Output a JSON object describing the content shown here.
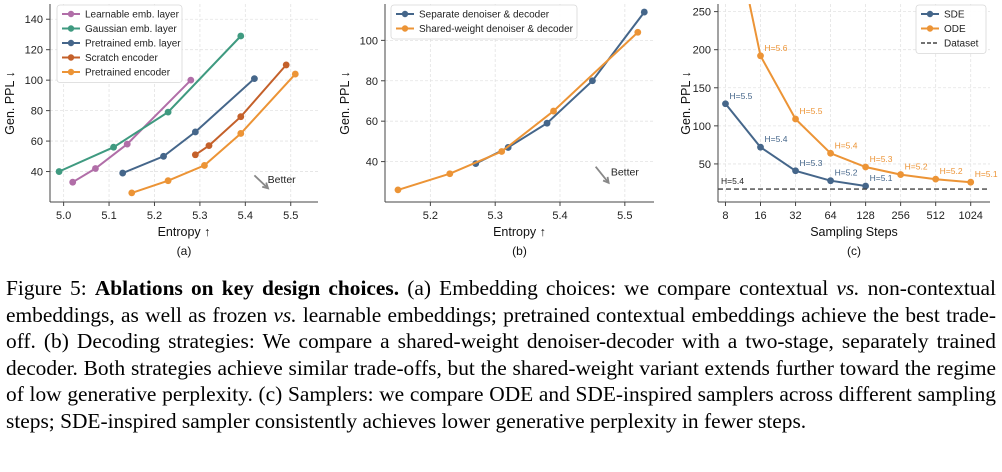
{
  "colors": {
    "grid": "#e3e3e3",
    "axis": "#444444",
    "better_arrow": "#888888"
  },
  "better_label": "Better",
  "chart_data": [
    {
      "type": "line",
      "sublabel": "(a)",
      "xlabel": "Entropy  ↑",
      "ylabel": "Gen. PPL  ↓",
      "xlim": [
        4.97,
        5.56
      ],
      "ylim": [
        20,
        150
      ],
      "xticks": [
        5.0,
        5.1,
        5.2,
        5.3,
        5.4,
        5.5
      ],
      "xtick_labels": [
        "5.0",
        "5.1",
        "5.2",
        "5.3",
        "5.4",
        "5.5"
      ],
      "yticks": [
        40,
        60,
        80,
        100,
        120,
        140
      ],
      "ytick_labels": [
        "40",
        "60",
        "80",
        "100",
        "120",
        "140"
      ],
      "grid": true,
      "legend_position": "top-left",
      "better_arrow": {
        "from": [
          5.42,
          37.5
        ],
        "to": [
          5.45,
          29
        ]
      },
      "better_text_at": [
        5.48,
        35
      ],
      "series": [
        {
          "name": "Learnable emb. layer",
          "color": "#b16ea8",
          "x": [
            5.02,
            5.07,
            5.14,
            5.28
          ],
          "y": [
            33,
            42,
            58,
            100
          ]
        },
        {
          "name": "Gaussian emb. layer",
          "color": "#3f9a80",
          "x": [
            4.99,
            5.11,
            5.23,
            5.39
          ],
          "y": [
            40,
            56,
            79,
            129
          ]
        },
        {
          "name": "Pretrained emb. layer",
          "color": "#45668a",
          "x": [
            5.13,
            5.22,
            5.29,
            5.42
          ],
          "y": [
            39,
            50,
            66,
            101
          ]
        },
        {
          "name": "Scratch encoder",
          "color": "#c4602a",
          "x": [
            5.29,
            5.32,
            5.39,
            5.49
          ],
          "y": [
            51,
            57,
            76,
            110
          ]
        },
        {
          "name": "Pretrained encoder",
          "color": "#ec9436",
          "x": [
            5.15,
            5.23,
            5.31,
            5.39,
            5.51
          ],
          "y": [
            26,
            34,
            44,
            65,
            104
          ]
        }
      ]
    },
    {
      "type": "line",
      "sublabel": "(b)",
      "xlabel": "Entropy  ↑",
      "ylabel": "Gen. PPL  ↓",
      "xlim": [
        5.13,
        5.545
      ],
      "ylim": [
        20,
        118
      ],
      "xticks": [
        5.2,
        5.3,
        5.4,
        5.5
      ],
      "xtick_labels": [
        "5.2",
        "5.3",
        "5.4",
        "5.5"
      ],
      "yticks": [
        40,
        60,
        80,
        100
      ],
      "ytick_labels": [
        "40",
        "60",
        "80",
        "100"
      ],
      "grid": true,
      "legend_position": "top-left",
      "better_arrow": {
        "from": [
          5.455,
          37.5
        ],
        "to": [
          5.475,
          29.5
        ]
      },
      "better_text_at": [
        5.5,
        35
      ],
      "series": [
        {
          "name": "Separate denoiser & decoder",
          "color": "#45668a",
          "x": [
            5.27,
            5.32,
            5.38,
            5.45,
            5.53
          ],
          "y": [
            39,
            47,
            59,
            80,
            114
          ]
        },
        {
          "name": "Shared-weight denoiser & decoder",
          "color": "#ec9436",
          "x": [
            5.15,
            5.23,
            5.31,
            5.39,
            5.52
          ],
          "y": [
            26,
            34,
            45,
            65,
            104
          ]
        }
      ]
    },
    {
      "type": "line",
      "sublabel": "(c)",
      "xlabel": "Sampling Steps",
      "ylabel": "Gen. PPL  ↓",
      "x_scale": "log2",
      "xlim": [
        6.9,
        1500
      ],
      "ylim": [
        0,
        260
      ],
      "xticks": [
        8,
        16,
        32,
        64,
        128,
        256,
        512,
        1024
      ],
      "xtick_labels": [
        "8",
        "16",
        "32",
        "64",
        "128",
        "256",
        "512",
        "1024"
      ],
      "yticks": [
        50,
        100,
        150,
        200,
        250
      ],
      "ytick_labels": [
        "50",
        "100",
        "150",
        "200",
        "250"
      ],
      "grid": true,
      "legend_position": "top-right",
      "series": [
        {
          "name": "SDE",
          "color": "#45668a",
          "x": [
            8,
            16,
            32,
            64,
            128
          ],
          "y": [
            129,
            72,
            41,
            28,
            21
          ],
          "labels": [
            "H=5.5",
            "H=5.4",
            "H=5.3",
            "H=5.2",
            "H=5.1"
          ]
        },
        {
          "name": "ODE",
          "color": "#ec9436",
          "x": [
            16,
            32,
            64,
            128,
            256,
            512,
            1024
          ],
          "y": [
            192,
            109,
            64,
            46,
            36,
            30,
            26
          ],
          "labels": [
            "H=5.6",
            "H=5.5",
            "H=5.4",
            "H=5.3",
            "H=5.2",
            "H=5.2",
            "H=5.1"
          ],
          "off_top": {
            "x_at_top": 12.9
          }
        },
        {
          "name": "Dataset",
          "color": "#444444",
          "dashed": true,
          "hline": 17,
          "label": "H=5.4"
        }
      ]
    }
  ],
  "caption": {
    "fig_label": "Figure 5:",
    "bold_title": "Ablations on key design choices.",
    "text_a1": " (a) Embedding choices: we compare contextual ",
    "vs1": "vs.",
    "text_a2": " non-contextual embeddings, as well as frozen ",
    "vs2": "vs.",
    "text_a3": " learnable embeddings; pretrained contextual embeddings achieve the best trade-off. (b) Decoding strategies: We compare a shared-weight denoiser-decoder with a two-stage, separately trained decoder.  Both strategies achieve similar trade-offs, but the shared-weight variant extends further toward the regime of low generative perplexity. (c) Samplers: we compare ODE and SDE-inspired samplers across different sampling steps; SDE-inspired sampler consistently achieves lower generative perplexity in fewer steps."
  }
}
